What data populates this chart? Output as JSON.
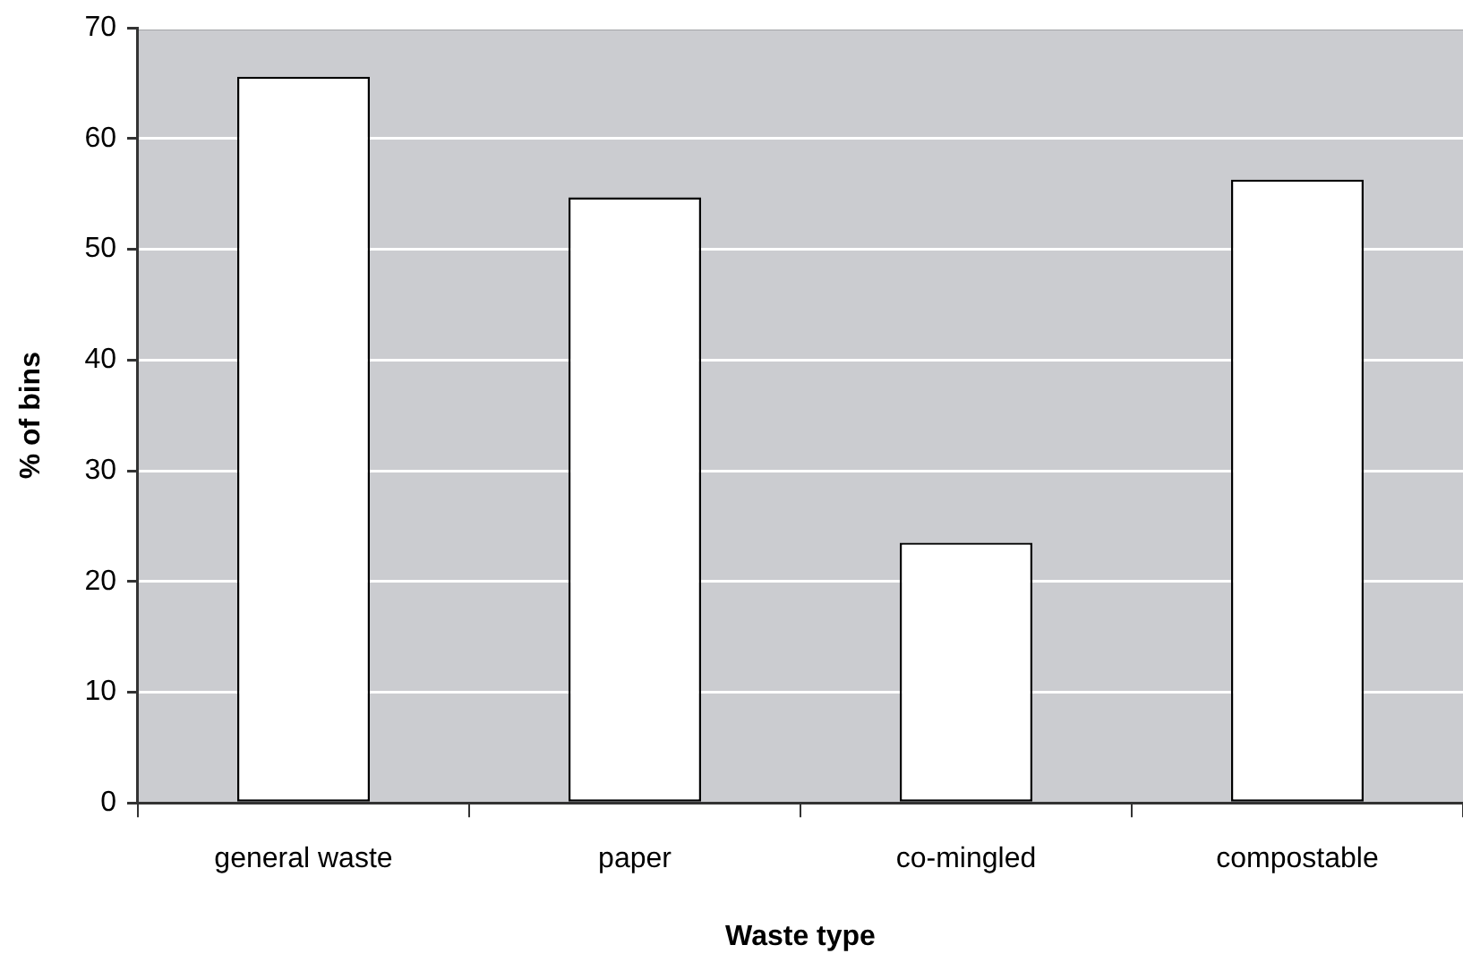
{
  "chart_data": {
    "type": "bar",
    "xlabel": "Waste type",
    "ylabel": "% of bins",
    "categories": [
      "general waste",
      "paper",
      "co-mingled",
      "compostable"
    ],
    "values": [
      65.6,
      54.7,
      23.5,
      56.3
    ],
    "color": "#ffffff",
    "ylim": [
      0,
      70
    ],
    "yticks": [
      0,
      10,
      20,
      30,
      40,
      50,
      60,
      70
    ],
    "grid": "y"
  }
}
